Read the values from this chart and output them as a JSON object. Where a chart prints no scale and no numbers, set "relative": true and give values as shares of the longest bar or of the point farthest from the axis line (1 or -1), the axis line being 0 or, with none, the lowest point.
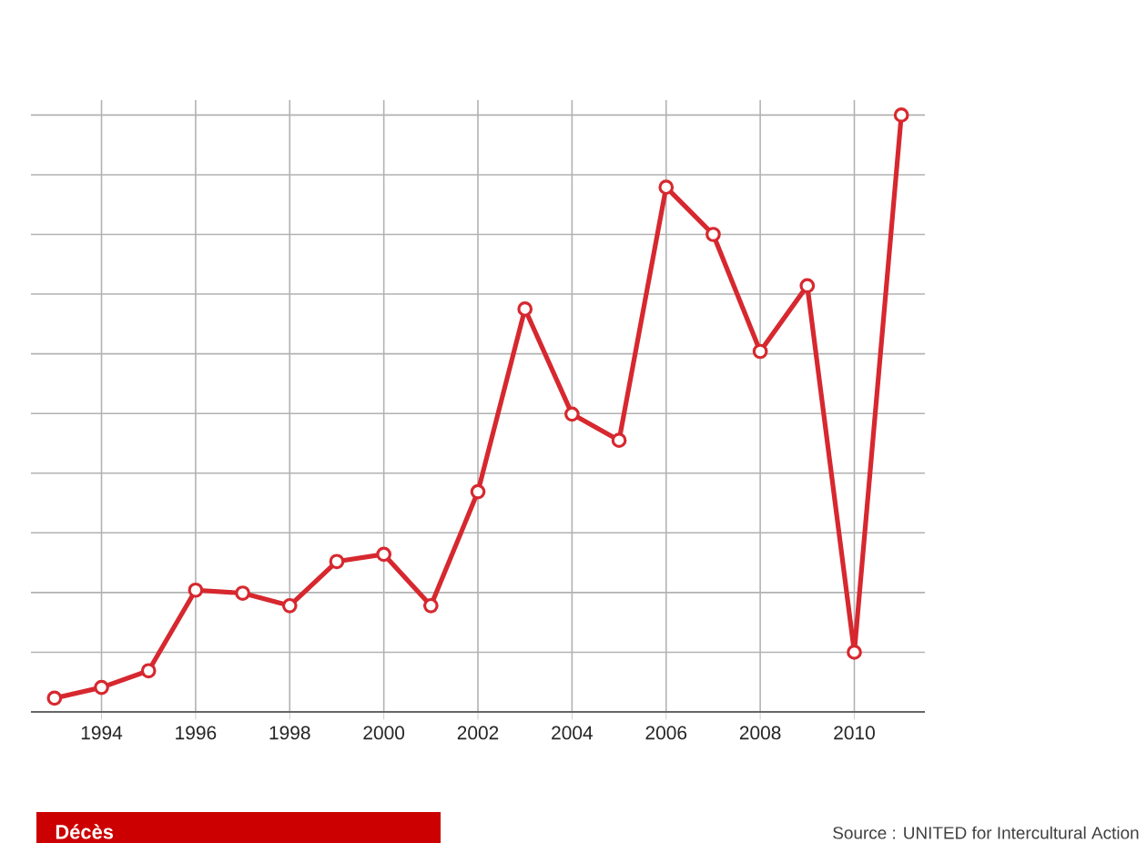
{
  "chart_data": {
    "type": "line",
    "relative": true,
    "x": [
      1993,
      1994,
      1995,
      1996,
      1997,
      1998,
      1999,
      2000,
      2001,
      2002,
      2003,
      2004,
      2005,
      2006,
      2007,
      2008,
      2009,
      2010,
      2011
    ],
    "series": [
      {
        "color": "#d7282f",
        "values": [
          0.023,
          0.041,
          0.069,
          0.204,
          0.199,
          0.178,
          0.252,
          0.264,
          0.178,
          0.369,
          0.675,
          0.499,
          0.455,
          0.879,
          0.8,
          0.604,
          0.714,
          0.1,
          1.0
        ]
      }
    ],
    "xlim": [
      1992.5,
      2011.5
    ],
    "xticks": [
      1994,
      1996,
      1998,
      2000,
      2002,
      2004,
      2006,
      2008,
      2010
    ],
    "grid": true,
    "marker": "circle",
    "line_style": "solid",
    "annotations": [
      "Décès",
      "Source : UNITED for Intercultural Action"
    ]
  }
}
